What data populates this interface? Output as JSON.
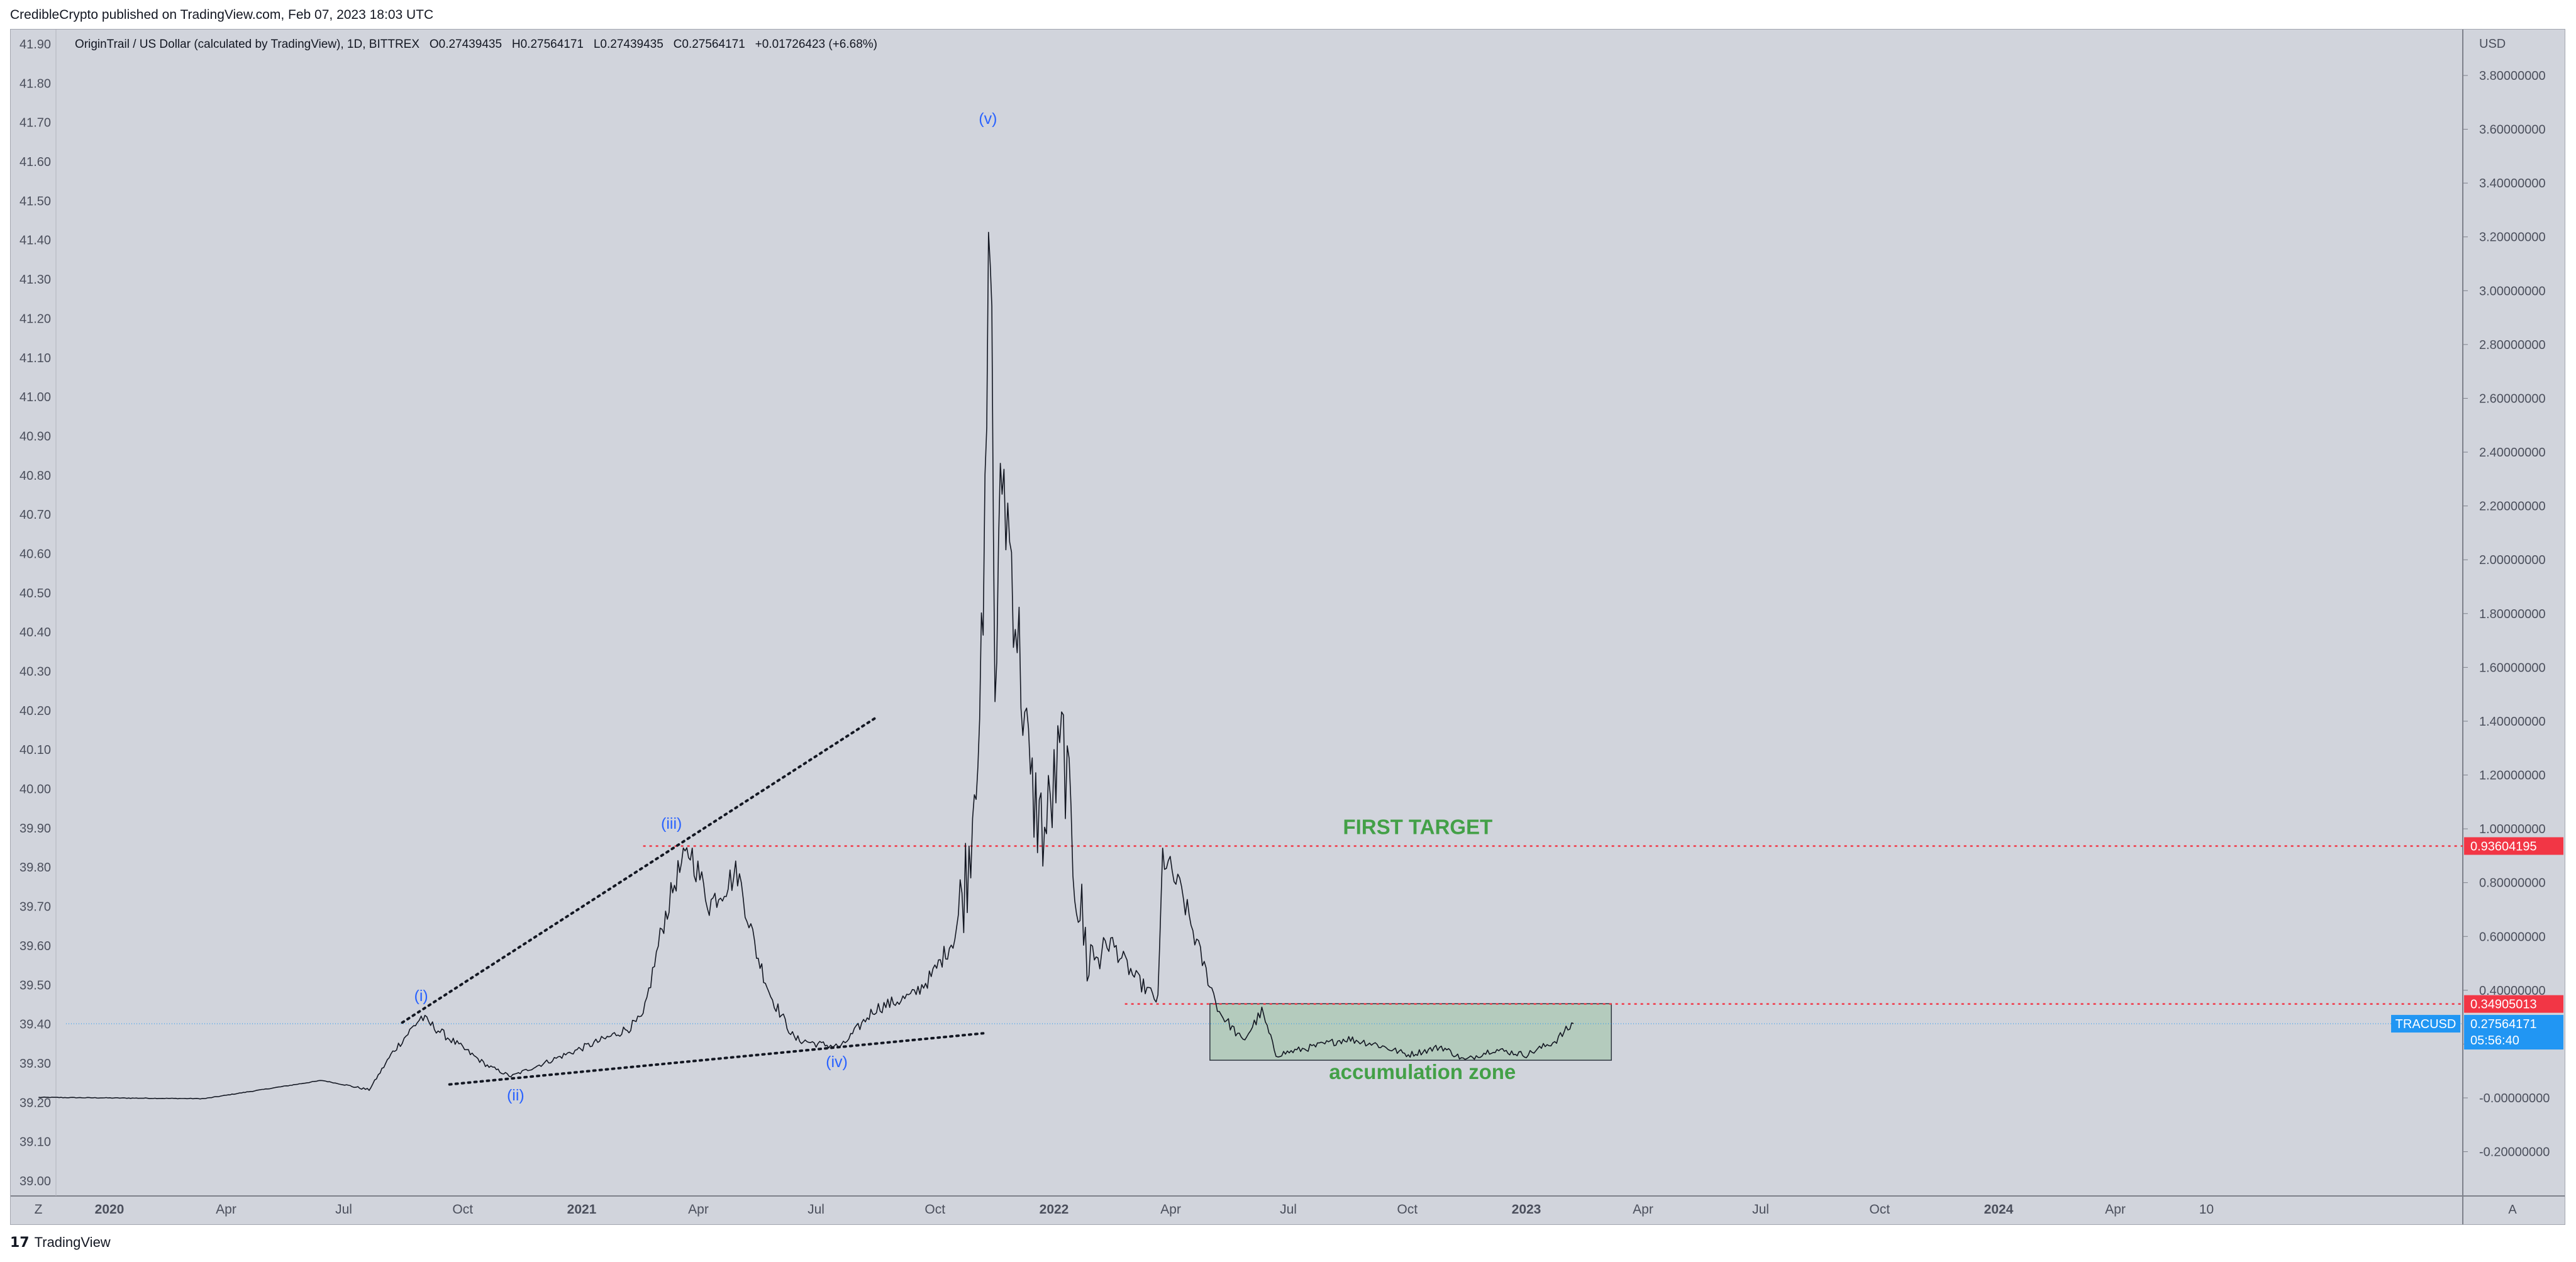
{
  "header": {
    "published": "CredibleCrypto published on TradingView.com, Feb 07, 2023 18:03 UTC"
  },
  "legend": {
    "symbol_desc": "OriginTrail / US Dollar (calculated by TradingView), 1D, BITTREX",
    "o_label": "O",
    "o_val": "0.27439435",
    "h_label": "H",
    "h_val": "0.27564171",
    "l_label": "L",
    "l_val": "0.27439435",
    "c_label": "C",
    "c_val": "0.27564171",
    "change": "+0.01726423 (+6.68%)"
  },
  "footer": {
    "brand": "TradingView",
    "logo_glyph": "17"
  },
  "chart_data": {
    "type": "line",
    "title": "OriginTrail / US Dollar (calculated by TradingView), 1D, BITTREX",
    "currency": "USD",
    "right_axis": {
      "range": [
        -0.3,
        4.0
      ],
      "ticks": [
        "3.80000000",
        "3.60000000",
        "3.40000000",
        "3.20000000",
        "3.00000000",
        "2.80000000",
        "2.60000000",
        "2.40000000",
        "2.20000000",
        "2.00000000",
        "1.80000000",
        "1.60000000",
        "1.40000000",
        "1.20000000",
        "1.00000000",
        "0.80000000",
        "0.60000000",
        "0.40000000",
        "0.20000000",
        "-0.00000000",
        "-0.20000000"
      ],
      "tick_values": [
        3.8,
        3.6,
        3.4,
        3.2,
        3.0,
        2.8,
        2.6,
        2.4,
        2.2,
        2.0,
        1.8,
        1.6,
        1.4,
        1.2,
        1.0,
        0.8,
        0.6,
        0.4,
        0.2,
        0.0,
        -0.2
      ]
    },
    "left_axis": {
      "ticks": [
        "41.90",
        "41.80",
        "41.70",
        "41.60",
        "41.50",
        "41.40",
        "41.30",
        "41.20",
        "41.10",
        "41.00",
        "40.90",
        "40.80",
        "40.70",
        "40.60",
        "40.50",
        "40.40",
        "40.30",
        "40.20",
        "40.10",
        "40.00",
        "39.90",
        "39.80",
        "39.70",
        "39.60",
        "39.50",
        "39.40",
        "39.30",
        "39.20",
        "39.10",
        "39.00"
      ],
      "tick_values": [
        41.9,
        41.8,
        41.7,
        41.6,
        41.5,
        41.4,
        41.3,
        41.2,
        41.1,
        41.0,
        40.9,
        40.8,
        40.7,
        40.6,
        40.5,
        40.4,
        40.3,
        40.2,
        40.1,
        40.0,
        39.9,
        39.8,
        39.7,
        39.6,
        39.5,
        39.4,
        39.3,
        39.2,
        39.1,
        39.0
      ]
    },
    "x_axis": {
      "ticks": [
        {
          "label": "2020",
          "year": 2020.0,
          "bold": true
        },
        {
          "label": "Apr",
          "year": 2020.247
        },
        {
          "label": "Jul",
          "year": 2020.496
        },
        {
          "label": "Oct",
          "year": 2020.748
        },
        {
          "label": "2021",
          "year": 2021.0,
          "bold": true
        },
        {
          "label": "Apr",
          "year": 2021.247
        },
        {
          "label": "Jul",
          "year": 2021.496
        },
        {
          "label": "Oct",
          "year": 2021.748
        },
        {
          "label": "2022",
          "year": 2022.0,
          "bold": true
        },
        {
          "label": "Apr",
          "year": 2022.247
        },
        {
          "label": "Jul",
          "year": 2022.496
        },
        {
          "label": "Oct",
          "year": 2022.748
        },
        {
          "label": "2023",
          "year": 2023.0,
          "bold": true
        },
        {
          "label": "Apr",
          "year": 2023.247
        },
        {
          "label": "Jul",
          "year": 2023.496
        },
        {
          "label": "Oct",
          "year": 2023.748
        },
        {
          "label": "2024",
          "year": 2024.0,
          "bold": true
        },
        {
          "label": "Apr",
          "year": 2024.247
        },
        {
          "label": "10",
          "year": 2024.44
        }
      ],
      "range_years": [
        2019.85,
        2025.0
      ]
    },
    "series": [
      {
        "symbol": "TRACUSD",
        "points": [
          {
            "x": 2019.85,
            "y": 0.002
          },
          {
            "x": 2020.2,
            "y": -0.003
          },
          {
            "x": 2020.45,
            "y": 0.065
          },
          {
            "x": 2020.55,
            "y": 0.03
          },
          {
            "x": 2020.6,
            "y": 0.17
          },
          {
            "x": 2020.66,
            "y": 0.3
          },
          {
            "x": 2020.72,
            "y": 0.22
          },
          {
            "x": 2020.8,
            "y": 0.12
          },
          {
            "x": 2020.85,
            "y": 0.08
          },
          {
            "x": 2020.95,
            "y": 0.15
          },
          {
            "x": 2021.05,
            "y": 0.22
          },
          {
            "x": 2021.1,
            "y": 0.26
          },
          {
            "x": 2021.13,
            "y": 0.3
          },
          {
            "x": 2021.17,
            "y": 0.63
          },
          {
            "x": 2021.2,
            "y": 0.82
          },
          {
            "x": 2021.23,
            "y": 0.92
          },
          {
            "x": 2021.27,
            "y": 0.72
          },
          {
            "x": 2021.33,
            "y": 0.84
          },
          {
            "x": 2021.37,
            "y": 0.54
          },
          {
            "x": 2021.4,
            "y": 0.38
          },
          {
            "x": 2021.45,
            "y": 0.22
          },
          {
            "x": 2021.5,
            "y": 0.2
          },
          {
            "x": 2021.55,
            "y": 0.19
          },
          {
            "x": 2021.62,
            "y": 0.33
          },
          {
            "x": 2021.7,
            "y": 0.38
          },
          {
            "x": 2021.74,
            "y": 0.45
          },
          {
            "x": 2021.79,
            "y": 0.6
          },
          {
            "x": 2021.82,
            "y": 0.9
          },
          {
            "x": 2021.85,
            "y": 1.68
          },
          {
            "x": 2021.865,
            "y": 3.4
          },
          {
            "x": 2021.875,
            "y": 1.5
          },
          {
            "x": 2021.89,
            "y": 2.35
          },
          {
            "x": 2021.91,
            "y": 2.0
          },
          {
            "x": 2021.95,
            "y": 1.15
          },
          {
            "x": 2021.98,
            "y": 0.98
          },
          {
            "x": 2022.02,
            "y": 1.32
          },
          {
            "x": 2022.04,
            "y": 0.9
          },
          {
            "x": 2022.07,
            "y": 0.52
          },
          {
            "x": 2022.12,
            "y": 0.58
          },
          {
            "x": 2022.17,
            "y": 0.45
          },
          {
            "x": 2022.22,
            "y": 0.36
          },
          {
            "x": 2022.23,
            "y": 0.9
          },
          {
            "x": 2022.27,
            "y": 0.76
          },
          {
            "x": 2022.31,
            "y": 0.53
          },
          {
            "x": 2022.35,
            "y": 0.32
          },
          {
            "x": 2022.4,
            "y": 0.21
          },
          {
            "x": 2022.44,
            "y": 0.32
          },
          {
            "x": 2022.47,
            "y": 0.16
          },
          {
            "x": 2022.55,
            "y": 0.19
          },
          {
            "x": 2022.62,
            "y": 0.22
          },
          {
            "x": 2022.68,
            "y": 0.2
          },
          {
            "x": 2022.75,
            "y": 0.16
          },
          {
            "x": 2022.82,
            "y": 0.19
          },
          {
            "x": 2022.87,
            "y": 0.14
          },
          {
            "x": 2022.93,
            "y": 0.18
          },
          {
            "x": 2023.0,
            "y": 0.16
          },
          {
            "x": 2023.06,
            "y": 0.21
          },
          {
            "x": 2023.1,
            "y": 0.276
          }
        ]
      }
    ],
    "wave_labels": [
      {
        "text": "(i)",
        "x": 2020.66,
        "y": 0.36
      },
      {
        "text": "(ii)",
        "x": 2020.86,
        "y": -0.009
      },
      {
        "text": "(iii)",
        "x": 2021.19,
        "y": 1.0
      },
      {
        "text": "(iv)",
        "x": 2021.54,
        "y": 0.115
      },
      {
        "text": "(v)",
        "x": 2021.86,
        "y": 3.62
      }
    ],
    "trendlines": [
      {
        "from": {
          "x": 2020.62,
          "y": 0.28
        },
        "to": {
          "x": 2021.62,
          "y": 1.41
        }
      },
      {
        "from": {
          "x": 2020.72,
          "y": 0.05
        },
        "to": {
          "x": 2021.85,
          "y": 0.24
        }
      }
    ],
    "annotations": [
      {
        "text": "FIRST TARGET",
        "x": 2022.77,
        "y": 0.98,
        "color": "#43a047"
      },
      {
        "text": "accumulation zone",
        "x": 2022.78,
        "y": 0.07,
        "color": "#43a047"
      }
    ],
    "levels": [
      {
        "price": 0.93604195,
        "label": "0.93604195",
        "color": "#f23645",
        "from_x": 2021.13
      },
      {
        "price": 0.34905013,
        "label": "0.34905013",
        "color": "#f23645",
        "from_x": 2022.15
      }
    ],
    "zone": {
      "x0": 2022.33,
      "x1": 2023.18,
      "y0": 0.14,
      "y1": 0.35,
      "color": "#4caf50"
    },
    "last_price": {
      "label": "0.27564171",
      "symbol": "TRACUSD",
      "countdown": "05:56:40",
      "price": 0.27564171,
      "color": "#2196f3"
    },
    "corner_labels": {
      "left": "Z",
      "right": "A"
    }
  }
}
